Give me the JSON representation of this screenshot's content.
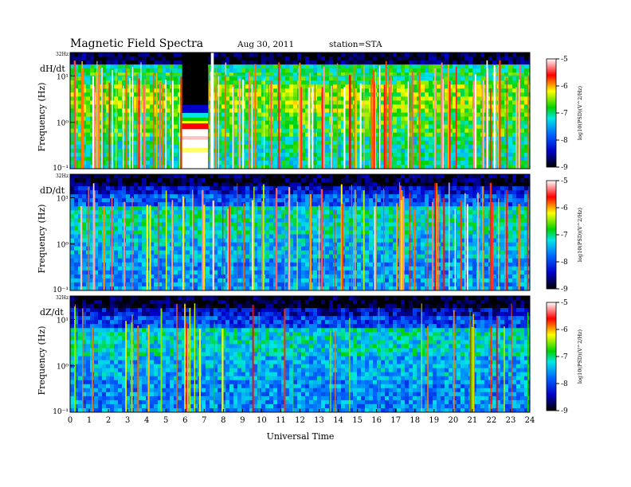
{
  "header": {
    "title": "Magnetic Field Spectra",
    "date": "Aug 30, 2011",
    "station": "station=STA"
  },
  "chart_data": {
    "type": "heatmap",
    "xlabel": "Universal Time",
    "x_ticks": [
      "0",
      "1",
      "2",
      "3",
      "4",
      "5",
      "6",
      "7",
      "8",
      "9",
      "10",
      "11",
      "12",
      "13",
      "14",
      "15",
      "16",
      "17",
      "18",
      "19",
      "20",
      "21",
      "22",
      "23",
      "24"
    ],
    "xlim": [
      0,
      24
    ],
    "colorbar": {
      "label": "log10(PSD)(V^2/Hz)",
      "ticks": [
        "-5",
        "-6",
        "-7",
        "-8",
        "-9"
      ],
      "range": [
        -9,
        -5
      ]
    },
    "panels": [
      {
        "name": "dH/dt",
        "ylabel": "Frequency (Hz)",
        "y_ticks": [
          "32Hz",
          "10¹",
          "10⁰",
          "10⁻¹"
        ],
        "ylim": [
          0.1,
          32
        ],
        "yscale": "log",
        "gaps": [
          [
            5.85,
            7.2
          ],
          [
            7.35,
            7.5
          ]
        ],
        "fixed_freq_line_hz": 10
      },
      {
        "name": "dD/dt",
        "ylabel": "Frequency (Hz)",
        "y_ticks": [
          "32Hz",
          "10¹",
          "10⁰",
          "10⁻¹"
        ],
        "ylim": [
          0.1,
          32
        ],
        "yscale": "log"
      },
      {
        "name": "dZ/dt",
        "ylabel": "Frequency (Hz)",
        "y_ticks": [
          "32Hz",
          "10¹",
          "10⁰",
          "10⁻¹"
        ],
        "ylim": [
          0.1,
          32
        ],
        "yscale": "log"
      }
    ]
  }
}
